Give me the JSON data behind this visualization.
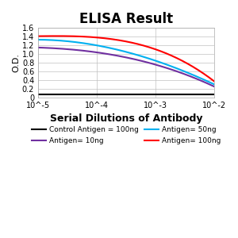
{
  "title": "ELISA Result",
  "ylabel": "O.D.",
  "xlabel": "Serial Dilutions of Antibody",
  "x_values": [
    0.01,
    0.001,
    0.0001,
    1e-05
  ],
  "xlim": [
    0.01,
    1e-05
  ],
  "ylim": [
    0,
    1.6
  ],
  "yticks": [
    0,
    0.2,
    0.4,
    0.6,
    0.8,
    1.0,
    1.2,
    1.4,
    1.6
  ],
  "xtick_labels": [
    "10^-2",
    "10^-3",
    "10^-4",
    "10^-5"
  ],
  "lines": [
    {
      "label": "Control Antigen = 100ng",
      "color": "#000000",
      "y_values": [
        0.07,
        0.07,
        0.07,
        0.07
      ]
    },
    {
      "label": "Antigen= 10ng",
      "color": "#7030A0",
      "y_values": [
        1.14,
        1.03,
        0.75,
        0.25
      ]
    },
    {
      "label": "Antigen= 50ng",
      "color": "#00B0F0",
      "y_values": [
        1.32,
        1.19,
        0.84,
        0.3
      ]
    },
    {
      "label": "Antigen= 100ng",
      "color": "#FF0000",
      "y_values": [
        1.4,
        1.37,
        1.1,
        0.37
      ]
    }
  ],
  "legend_fontsize": 6.5,
  "title_fontsize": 12,
  "ylabel_fontsize": 8,
  "xlabel_fontsize": 9,
  "background_color": "#ffffff",
  "grid_color": "#c0c0c0"
}
